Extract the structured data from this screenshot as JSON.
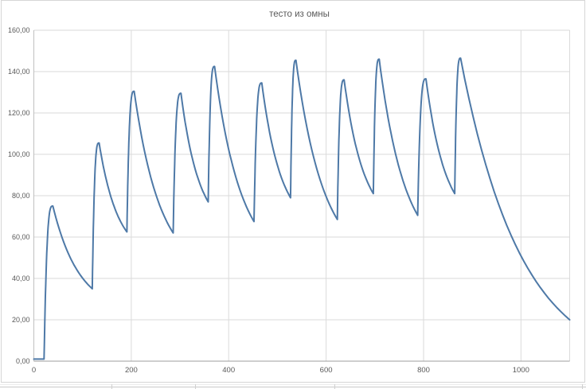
{
  "chart": {
    "title": "тесто из омны",
    "colors": {
      "line": "#4E79A7",
      "gridline": "#DADADA",
      "y_axis_line": "#C0C0C0",
      "x_axis_line": "#9E9E9E",
      "label": "#595959",
      "title": "#595959",
      "border": "#D6D6D6",
      "background": "#FFFFFF"
    }
  },
  "chart_data": {
    "type": "line",
    "title": "тесто из омны",
    "xlabel": "",
    "ylabel": "",
    "xlim": [
      0,
      1100
    ],
    "ylim": [
      0,
      160
    ],
    "x_ticks": [
      0,
      200,
      400,
      600,
      800,
      1000
    ],
    "x_tick_labels": [
      "0",
      "200",
      "400",
      "600",
      "800",
      "1000"
    ],
    "y_ticks": [
      0,
      20,
      40,
      60,
      80,
      100,
      120,
      140,
      160
    ],
    "y_tick_labels": [
      "0,00",
      "20,00",
      "40,00",
      "60,00",
      "80,00",
      "100,00",
      "120,00",
      "140,00",
      "160,00"
    ],
    "grid": true,
    "legend": "none",
    "series": [
      {
        "name": "тесто из омны",
        "color": "#4E79A7",
        "keypoints": [
          {
            "t": 0,
            "v": 1,
            "k": "start"
          },
          {
            "t": 21,
            "v": 1,
            "k": "flat"
          },
          {
            "t": 39,
            "v": 75,
            "k": "peak"
          },
          {
            "t": 120,
            "v": 35,
            "k": "trough"
          },
          {
            "t": 134,
            "v": 105.5,
            "k": "peak"
          },
          {
            "t": 191,
            "v": 62.5,
            "k": "trough"
          },
          {
            "t": 206,
            "v": 130.5,
            "k": "peak"
          },
          {
            "t": 286,
            "v": 62,
            "k": "trough"
          },
          {
            "t": 302,
            "v": 129.5,
            "k": "peak"
          },
          {
            "t": 358,
            "v": 77,
            "k": "trough"
          },
          {
            "t": 371,
            "v": 142.5,
            "k": "peak"
          },
          {
            "t": 452,
            "v": 67.5,
            "k": "trough"
          },
          {
            "t": 468,
            "v": 134.5,
            "k": "peak"
          },
          {
            "t": 527,
            "v": 79,
            "k": "trough"
          },
          {
            "t": 538,
            "v": 145.5,
            "k": "peak"
          },
          {
            "t": 623,
            "v": 68.5,
            "k": "trough"
          },
          {
            "t": 637,
            "v": 136,
            "k": "peak"
          },
          {
            "t": 697,
            "v": 81,
            "k": "trough"
          },
          {
            "t": 709,
            "v": 146,
            "k": "peak"
          },
          {
            "t": 788,
            "v": 70.5,
            "k": "trough"
          },
          {
            "t": 805,
            "v": 136.5,
            "k": "peak"
          },
          {
            "t": 864,
            "v": 81,
            "k": "trough"
          },
          {
            "t": 876,
            "v": 146.5,
            "k": "peak"
          },
          {
            "t": 1100,
            "v": 20,
            "k": "end"
          }
        ]
      }
    ]
  }
}
